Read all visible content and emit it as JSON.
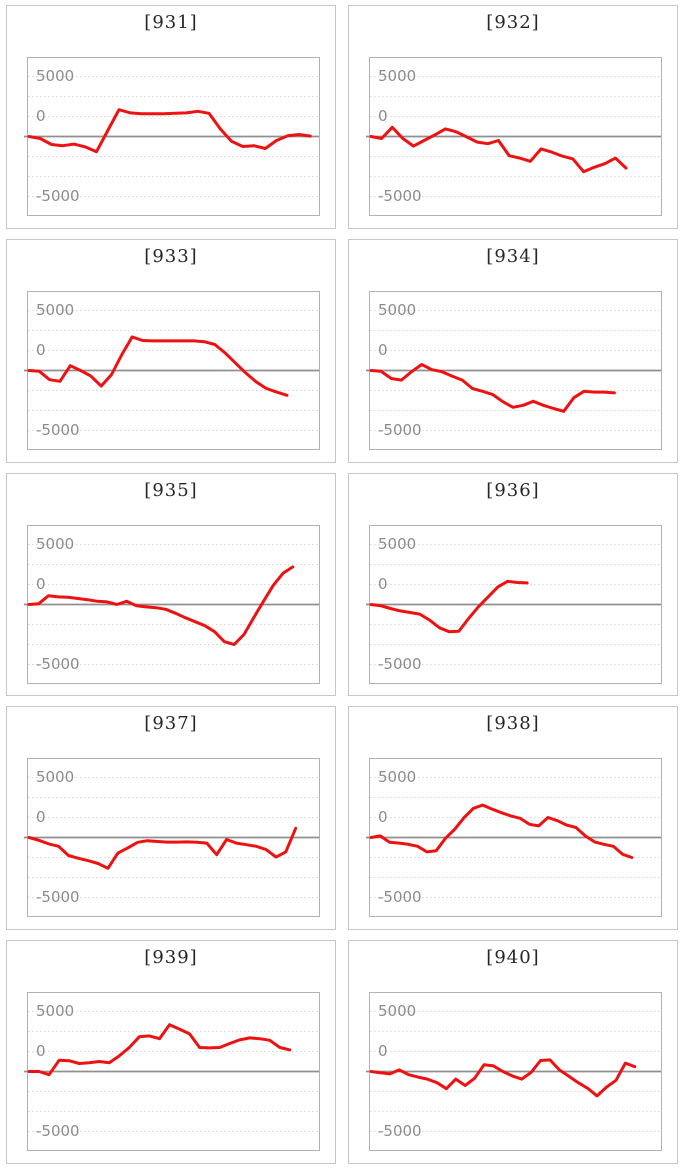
{
  "page": {
    "kind": "machine-slump-graph-grid",
    "rows": 5,
    "cols": 2
  },
  "colors": {
    "series_red": "#ee1111",
    "zero_axis": "#8f8f8f",
    "gridline": "#d8d8d8",
    "panel_border": "#c6c6c6",
    "plot_border": "#b2b2b2",
    "title_text": "#262626",
    "tick_text": "#8c8c8c"
  },
  "axis": {
    "tick_labels": [
      "5000",
      "0",
      "-5000"
    ],
    "ylim": [
      -10000,
      10000
    ],
    "gridline_interval": 2500,
    "zero_line": true,
    "legend": "none",
    "x_axis_labels": "none"
  },
  "chart_data": [
    {
      "type": "line",
      "title": "[931]",
      "end_frac": 0.97,
      "values": [
        0,
        -250,
        -1000,
        -1150,
        -950,
        -1300,
        -1900,
        750,
        3350,
        2950,
        2850,
        2850,
        2850,
        2900,
        2950,
        3150,
        2900,
        950,
        -600,
        -1250,
        -1150,
        -1500,
        -500,
        100,
        250,
        50
      ]
    },
    {
      "type": "line",
      "title": "[932]",
      "end_frac": 0.88,
      "values": [
        0,
        -250,
        1150,
        -250,
        -1200,
        -500,
        200,
        950,
        600,
        -50,
        -700,
        -900,
        -500,
        -2400,
        -2700,
        -3100,
        -1550,
        -1950,
        -2450,
        -2800,
        -4400,
        -3850,
        -3400,
        -2700,
        -3950
      ]
    },
    {
      "type": "line",
      "title": "[933]",
      "end_frac": 0.89,
      "values": [
        0,
        -100,
        -1150,
        -1350,
        600,
        0,
        -700,
        -1950,
        -500,
        2000,
        4200,
        3750,
        3700,
        3700,
        3700,
        3700,
        3700,
        3600,
        3250,
        2200,
        950,
        -300,
        -1400,
        -2250,
        -2700,
        -3100
      ]
    },
    {
      "type": "line",
      "title": "[934]",
      "end_frac": 0.84,
      "values": [
        0,
        -100,
        -1000,
        -1200,
        -150,
        750,
        100,
        -150,
        -700,
        -1200,
        -2250,
        -2600,
        -3000,
        -3900,
        -4600,
        -4350,
        -3850,
        -4350,
        -4750,
        -5100,
        -3400,
        -2600,
        -2700,
        -2700,
        -2800
      ]
    },
    {
      "type": "line",
      "title": "[935]",
      "end_frac": 0.91,
      "values": [
        0,
        100,
        1100,
        950,
        900,
        750,
        600,
        400,
        330,
        0,
        400,
        -150,
        -300,
        -400,
        -600,
        -1100,
        -1650,
        -2150,
        -2650,
        -3400,
        -4650,
        -5000,
        -3750,
        -1650,
        400,
        2400,
        3900,
        4700
      ]
    },
    {
      "type": "line",
      "title": "[936]",
      "end_frac": 0.54,
      "values": [
        0,
        -150,
        -500,
        -800,
        -1000,
        -1200,
        -1950,
        -2900,
        -3400,
        -3350,
        -1750,
        -300,
        950,
        2200,
        2900,
        2750,
        2700
      ]
    },
    {
      "type": "line",
      "title": "[937]",
      "end_frac": 0.92,
      "values": [
        0,
        -350,
        -800,
        -1100,
        -2250,
        -2600,
        -2900,
        -3250,
        -3850,
        -1950,
        -1300,
        -600,
        -400,
        -500,
        -580,
        -580,
        -550,
        -600,
        -700,
        -2150,
        -250,
        -700,
        -900,
        -1100,
        -1500,
        -2450,
        -1800,
        1150
      ]
    },
    {
      "type": "line",
      "title": "[938]",
      "end_frac": 0.9,
      "values": [
        0,
        200,
        -600,
        -700,
        -850,
        -1100,
        -1800,
        -1650,
        -100,
        1050,
        2500,
        3650,
        4050,
        3550,
        3100,
        2700,
        2400,
        1650,
        1450,
        2500,
        2100,
        1550,
        1250,
        200,
        -550,
        -850,
        -1100,
        -2100,
        -2500
      ]
    },
    {
      "type": "line",
      "title": "[939]",
      "end_frac": 0.9,
      "values": [
        0,
        0,
        -400,
        1400,
        1350,
        1000,
        1100,
        1250,
        1100,
        1950,
        3000,
        4350,
        4450,
        4100,
        5850,
        5300,
        4700,
        3000,
        2950,
        3000,
        3500,
        3950,
        4200,
        4100,
        3900,
        3000,
        2700
      ]
    },
    {
      "type": "line",
      "title": "[940]",
      "end_frac": 0.91,
      "values": [
        0,
        -150,
        -300,
        200,
        -400,
        -700,
        -950,
        -1400,
        -2150,
        -950,
        -1750,
        -850,
        850,
        700,
        0,
        -550,
        -950,
        -100,
        1370,
        1450,
        200,
        -600,
        -1400,
        -2100,
        -3050,
        -1950,
        -1100,
        1050,
        600
      ]
    }
  ]
}
